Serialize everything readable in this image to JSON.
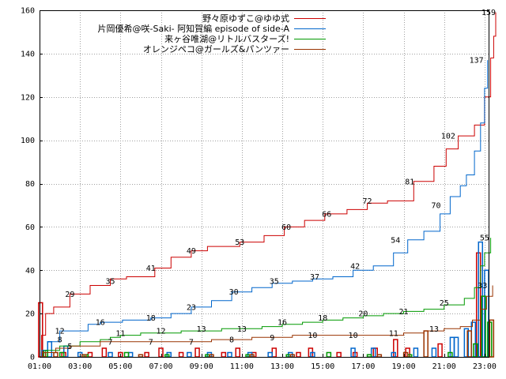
{
  "chart_data": {
    "type": "line",
    "xlim": [
      0,
      22.2
    ],
    "ylim": [
      0,
      160
    ],
    "y_ticks": [
      0,
      20,
      40,
      60,
      80,
      100,
      120,
      140,
      160
    ],
    "x_tick_values": [
      0,
      2,
      4,
      6,
      8,
      10,
      12,
      14,
      16,
      18,
      20,
      22
    ],
    "x_tick_labels": [
      "01:00",
      "03:00",
      "05:00",
      "07:00",
      "09:00",
      "11:00",
      "13:00",
      "15:00",
      "17:00",
      "19:00",
      "21:00",
      "23:00"
    ],
    "grid": true,
    "legend_position": "top-right",
    "series": [
      {
        "name": "野々原ゆずこ@ゆゆ式",
        "color": "#cc0000",
        "line": [
          [
            0,
            0
          ],
          [
            0.1,
            10
          ],
          [
            0.3,
            20
          ],
          [
            0.7,
            23
          ],
          [
            1.5,
            29
          ],
          [
            2.5,
            33
          ],
          [
            3.5,
            36
          ],
          [
            4.3,
            37
          ],
          [
            5.7,
            41
          ],
          [
            6.5,
            46
          ],
          [
            7.5,
            49
          ],
          [
            8.3,
            51
          ],
          [
            9.9,
            53
          ],
          [
            11.1,
            56
          ],
          [
            12.1,
            60
          ],
          [
            13.1,
            63
          ],
          [
            14.1,
            66
          ],
          [
            15.2,
            68
          ],
          [
            16.2,
            71
          ],
          [
            17.2,
            72
          ],
          [
            18.5,
            81
          ],
          [
            19.5,
            88
          ],
          [
            20.1,
            96
          ],
          [
            20.7,
            102
          ],
          [
            21.5,
            107
          ],
          [
            22.0,
            120
          ],
          [
            22.3,
            138
          ],
          [
            22.45,
            148
          ],
          [
            22.55,
            159
          ]
        ],
        "line_labels": [
          {
            "x": 1.5,
            "y": 29,
            "text": "29"
          },
          {
            "x": 3.5,
            "y": 35,
            "text": "35"
          },
          {
            "x": 5.5,
            "y": 41,
            "text": "41"
          },
          {
            "x": 7.5,
            "y": 49,
            "text": "49"
          },
          {
            "x": 9.9,
            "y": 53,
            "text": "53"
          },
          {
            "x": 12.2,
            "y": 60,
            "text": "60"
          },
          {
            "x": 14.2,
            "y": 66,
            "text": "66"
          },
          {
            "x": 16.2,
            "y": 72,
            "text": "72"
          },
          {
            "x": 18.3,
            "y": 81,
            "text": "81"
          },
          {
            "x": 20.2,
            "y": 102,
            "text": "102"
          },
          {
            "x": 22.2,
            "y": 159,
            "text": "159"
          }
        ],
        "bars": [
          {
            "x": 0.05,
            "v": 25
          },
          {
            "x": 1.2,
            "v": 2
          },
          {
            "x": 2.5,
            "v": 2
          },
          {
            "x": 3.2,
            "v": 4
          },
          {
            "x": 4.0,
            "v": 2
          },
          {
            "x": 5.3,
            "v": 2
          },
          {
            "x": 6.0,
            "v": 4
          },
          {
            "x": 7.0,
            "v": 2
          },
          {
            "x": 7.8,
            "v": 4
          },
          {
            "x": 9.1,
            "v": 2
          },
          {
            "x": 9.8,
            "v": 4
          },
          {
            "x": 10.6,
            "v": 2
          },
          {
            "x": 11.6,
            "v": 4
          },
          {
            "x": 12.8,
            "v": 2
          },
          {
            "x": 13.4,
            "v": 4
          },
          {
            "x": 14.8,
            "v": 2
          },
          {
            "x": 15.6,
            "v": 2
          },
          {
            "x": 16.6,
            "v": 4
          },
          {
            "x": 17.6,
            "v": 8
          },
          {
            "x": 18.2,
            "v": 4
          },
          {
            "x": 19.8,
            "v": 6
          },
          {
            "x": 21.7,
            "v": 48
          }
        ]
      },
      {
        "name": "片岡優希@咲-Saki- 阿知賀編 episode of side-A",
        "color": "#0066cc",
        "line": [
          [
            0,
            0
          ],
          [
            0.1,
            3
          ],
          [
            0.4,
            7
          ],
          [
            1.0,
            12
          ],
          [
            2.4,
            15
          ],
          [
            3.0,
            16
          ],
          [
            4.1,
            17
          ],
          [
            5.5,
            18
          ],
          [
            6.5,
            20
          ],
          [
            7.5,
            23
          ],
          [
            8.5,
            26
          ],
          [
            9.5,
            30
          ],
          [
            10.5,
            32
          ],
          [
            11.5,
            34
          ],
          [
            12.5,
            35
          ],
          [
            13.5,
            36
          ],
          [
            14.5,
            37
          ],
          [
            15.5,
            40
          ],
          [
            16.5,
            42
          ],
          [
            17.5,
            48
          ],
          [
            18.2,
            54
          ],
          [
            19.0,
            58
          ],
          [
            19.8,
            66
          ],
          [
            20.3,
            74
          ],
          [
            20.8,
            79
          ],
          [
            21.1,
            84
          ],
          [
            21.5,
            95
          ],
          [
            21.8,
            108
          ],
          [
            22.0,
            124
          ],
          [
            22.15,
            137
          ]
        ],
        "line_labels": [
          {
            "x": 1.0,
            "y": 12,
            "text": "12"
          },
          {
            "x": 3.0,
            "y": 16,
            "text": "16"
          },
          {
            "x": 5.5,
            "y": 18,
            "text": "18"
          },
          {
            "x": 7.5,
            "y": 23,
            "text": "23"
          },
          {
            "x": 9.6,
            "y": 30,
            "text": "30"
          },
          {
            "x": 11.6,
            "y": 35,
            "text": "35"
          },
          {
            "x": 13.6,
            "y": 37,
            "text": "37"
          },
          {
            "x": 15.6,
            "y": 42,
            "text": "42"
          },
          {
            "x": 17.6,
            "y": 54,
            "text": "54"
          },
          {
            "x": 19.6,
            "y": 70,
            "text": "70"
          },
          {
            "x": 21.6,
            "y": 137,
            "text": "137"
          }
        ],
        "bars": [
          {
            "x": 0.5,
            "v": 7
          },
          {
            "x": 1.3,
            "v": 5
          },
          {
            "x": 2.0,
            "v": 2
          },
          {
            "x": 3.5,
            "v": 2
          },
          {
            "x": 4.5,
            "v": 2
          },
          {
            "x": 6.4,
            "v": 2
          },
          {
            "x": 7.4,
            "v": 2
          },
          {
            "x": 8.4,
            "v": 2
          },
          {
            "x": 9.4,
            "v": 2
          },
          {
            "x": 10.4,
            "v": 2
          },
          {
            "x": 11.4,
            "v": 2
          },
          {
            "x": 12.4,
            "v": 2
          },
          {
            "x": 13.5,
            "v": 2
          },
          {
            "x": 15.5,
            "v": 4
          },
          {
            "x": 16.5,
            "v": 4
          },
          {
            "x": 17.5,
            "v": 2
          },
          {
            "x": 18.6,
            "v": 4
          },
          {
            "x": 19.5,
            "v": 4
          },
          {
            "x": 20.4,
            "v": 9
          },
          {
            "x": 20.6,
            "v": 9
          },
          {
            "x": 21.1,
            "v": 13
          },
          {
            "x": 21.45,
            "v": 16
          },
          {
            "x": 21.8,
            "v": 53
          },
          {
            "x": 22.1,
            "v": 40
          }
        ]
      },
      {
        "name": "来ヶ谷唯湖@リトルバスターズ!",
        "color": "#009900",
        "line": [
          [
            0,
            0
          ],
          [
            0.3,
            3
          ],
          [
            1.0,
            5
          ],
          [
            2.0,
            7
          ],
          [
            3.0,
            8
          ],
          [
            3.5,
            9
          ],
          [
            4.0,
            10
          ],
          [
            5.0,
            11
          ],
          [
            7.0,
            12
          ],
          [
            9.0,
            13
          ],
          [
            11.0,
            14
          ],
          [
            12.0,
            15
          ],
          [
            13.0,
            16
          ],
          [
            14.0,
            17
          ],
          [
            15.0,
            18
          ],
          [
            16.0,
            19
          ],
          [
            17.0,
            20
          ],
          [
            18.0,
            21
          ],
          [
            19.0,
            22
          ],
          [
            20.0,
            24
          ],
          [
            21.0,
            27
          ],
          [
            21.5,
            32
          ],
          [
            21.8,
            42
          ],
          [
            22.0,
            48
          ],
          [
            22.3,
            55
          ]
        ],
        "line_labels": [
          {
            "x": 1.0,
            "y": 8,
            "text": "8"
          },
          {
            "x": 4.0,
            "y": 11,
            "text": "11"
          },
          {
            "x": 6.0,
            "y": 12,
            "text": "12"
          },
          {
            "x": 8.0,
            "y": 13,
            "text": "13"
          },
          {
            "x": 10.0,
            "y": 13,
            "text": "13"
          },
          {
            "x": 12.0,
            "y": 16,
            "text": "16"
          },
          {
            "x": 14.0,
            "y": 18,
            "text": "18"
          },
          {
            "x": 16.0,
            "y": 20,
            "text": "20"
          },
          {
            "x": 18.0,
            "y": 21,
            "text": "21"
          },
          {
            "x": 20.0,
            "y": 25,
            "text": "25"
          },
          {
            "x": 22.0,
            "y": 55,
            "text": "55"
          }
        ],
        "bars": [
          {
            "x": 0.3,
            "v": 3
          },
          {
            "x": 1.1,
            "v": 2
          },
          {
            "x": 2.3,
            "v": 1
          },
          {
            "x": 4.3,
            "v": 2
          },
          {
            "x": 6.3,
            "v": 1
          },
          {
            "x": 8.3,
            "v": 1
          },
          {
            "x": 10.3,
            "v": 1
          },
          {
            "x": 12.3,
            "v": 1
          },
          {
            "x": 14.3,
            "v": 2
          },
          {
            "x": 16.3,
            "v": 1
          },
          {
            "x": 18.3,
            "v": 1
          },
          {
            "x": 20.3,
            "v": 2
          },
          {
            "x": 21.55,
            "v": 6
          },
          {
            "x": 21.95,
            "v": 28
          },
          {
            "x": 22.25,
            "v": 16
          }
        ]
      },
      {
        "name": "オレンジペコ@ガールズ&パンツァー",
        "color": "#993300",
        "line": [
          [
            0,
            0
          ],
          [
            0.3,
            2
          ],
          [
            0.8,
            4
          ],
          [
            1.5,
            5
          ],
          [
            3.0,
            7
          ],
          [
            5.0,
            7
          ],
          [
            7.0,
            7
          ],
          [
            8.5,
            8
          ],
          [
            10.5,
            9
          ],
          [
            12.5,
            10
          ],
          [
            14.5,
            10
          ],
          [
            16.5,
            10
          ],
          [
            18.0,
            11
          ],
          [
            19.0,
            12
          ],
          [
            20.0,
            13
          ],
          [
            20.8,
            14
          ],
          [
            21.4,
            17
          ],
          [
            21.8,
            22
          ],
          [
            22.1,
            28
          ],
          [
            22.4,
            33
          ]
        ],
        "line_labels": [
          {
            "x": 1.5,
            "y": 5,
            "text": "5"
          },
          {
            "x": 3.5,
            "y": 7,
            "text": "7"
          },
          {
            "x": 5.5,
            "y": 7,
            "text": "7"
          },
          {
            "x": 7.5,
            "y": 7,
            "text": "7"
          },
          {
            "x": 9.5,
            "y": 8,
            "text": "8"
          },
          {
            "x": 11.5,
            "y": 9,
            "text": "9"
          },
          {
            "x": 13.5,
            "y": 10,
            "text": "10"
          },
          {
            "x": 15.5,
            "y": 10,
            "text": "10"
          },
          {
            "x": 17.5,
            "y": 11,
            "text": "11"
          },
          {
            "x": 19.5,
            "y": 13,
            "text": "13"
          },
          {
            "x": 21.9,
            "y": 33,
            "text": "33"
          }
        ],
        "bars": [
          {
            "x": 0.2,
            "v": 2
          },
          {
            "x": 0.8,
            "v": 2
          },
          {
            "x": 2.2,
            "v": 1
          },
          {
            "x": 5.0,
            "v": 1
          },
          {
            "x": 8.5,
            "v": 1
          },
          {
            "x": 10.5,
            "v": 1
          },
          {
            "x": 12.5,
            "v": 1
          },
          {
            "x": 16.8,
            "v": 1
          },
          {
            "x": 18.1,
            "v": 2
          },
          {
            "x": 19.1,
            "v": 12
          },
          {
            "x": 21.25,
            "v": 12
          },
          {
            "x": 22.35,
            "v": 17
          }
        ]
      }
    ]
  }
}
